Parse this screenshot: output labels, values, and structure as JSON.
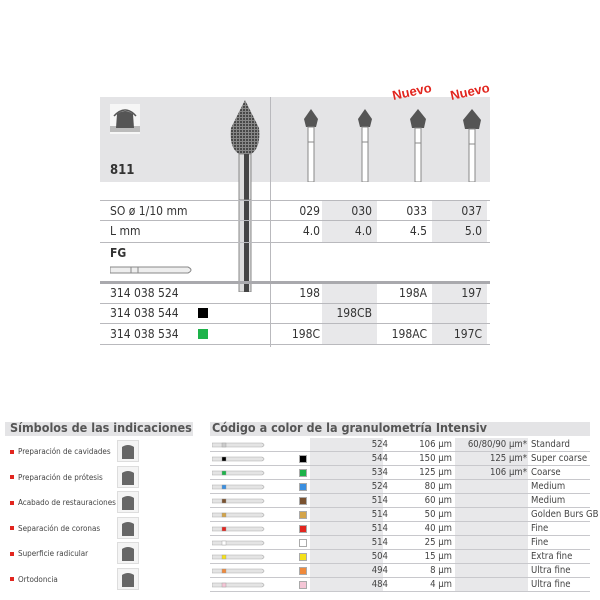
{
  "product": {
    "code": "811",
    "nuevo_labels": [
      "Nuevo",
      "Nuevo"
    ],
    "so_label": "SO ø 1/10 mm",
    "l_label": "L mm",
    "shank_label": "FG",
    "sizes": [
      "029",
      "030",
      "033",
      "037"
    ],
    "lengths": [
      "4.0",
      "4.0",
      "4.5",
      "5.0"
    ],
    "orders": [
      {
        "ref": "314 038 524",
        "color": "",
        "cells": [
          "198",
          "",
          "198A",
          "197"
        ]
      },
      {
        "ref": "314 038 544",
        "color": "#000000",
        "cells": [
          "",
          "198CB",
          "",
          ""
        ]
      },
      {
        "ref": "314 038 534",
        "color": "#1db34a",
        "cells": [
          "198C",
          "",
          "198AC",
          "197C"
        ]
      }
    ]
  },
  "indications": {
    "title": "Símbolos de las indicaciones",
    "items": [
      {
        "label": "Preparación de cavidades",
        "icon": "cavity-preparation-icon"
      },
      {
        "label": "Preparación de prótesis",
        "icon": "prosthesis-preparation-icon"
      },
      {
        "label": "Acabado de restauraciones",
        "icon": "restoration-finishing-icon"
      },
      {
        "label": "Separación de coronas",
        "icon": "crown-separation-icon"
      },
      {
        "label": "Superficie radicular",
        "icon": "root-surface-icon"
      },
      {
        "label": "Ortodoncia",
        "icon": "orthodontics-icon"
      }
    ]
  },
  "grit": {
    "title": "Código a color de la granulometría Intensiv",
    "rows": [
      {
        "color": "",
        "code": "524",
        "size": "106 µm",
        "alt": "60/80/90 µm*",
        "label": "Standard"
      },
      {
        "color": "#000000",
        "code": "544",
        "size": "150 µm",
        "alt": "125 µm*",
        "label": "Super coarse"
      },
      {
        "color": "#1db34a",
        "code": "534",
        "size": "125 µm",
        "alt": "106 µm*",
        "label": "Coarse"
      },
      {
        "color": "#3a8fe0",
        "code": "524",
        "size": "80 µm",
        "alt": "",
        "label": "Medium"
      },
      {
        "color": "#7a5230",
        "code": "514",
        "size": "60 µm",
        "alt": "",
        "label": "Medium"
      },
      {
        "color": "#d4a449",
        "code": "514",
        "size": "50 µm",
        "alt": "",
        "label": "Golden Burs GB"
      },
      {
        "color": "#e2261f",
        "code": "514",
        "size": "40 µm",
        "alt": "",
        "label": "Fine"
      },
      {
        "color": "#ffffff",
        "code": "514",
        "size": "25 µm",
        "alt": "",
        "label": "Fine"
      },
      {
        "color": "#f5e11a",
        "code": "504",
        "size": "15 µm",
        "alt": "",
        "label": "Extra fine"
      },
      {
        "color": "#ef8a3c",
        "code": "494",
        "size": "8 µm",
        "alt": "",
        "label": "Ultra fine"
      },
      {
        "color": "#f5c6d6",
        "code": "484",
        "size": "4 µm",
        "alt": "",
        "label": "Ultra fine"
      }
    ]
  }
}
